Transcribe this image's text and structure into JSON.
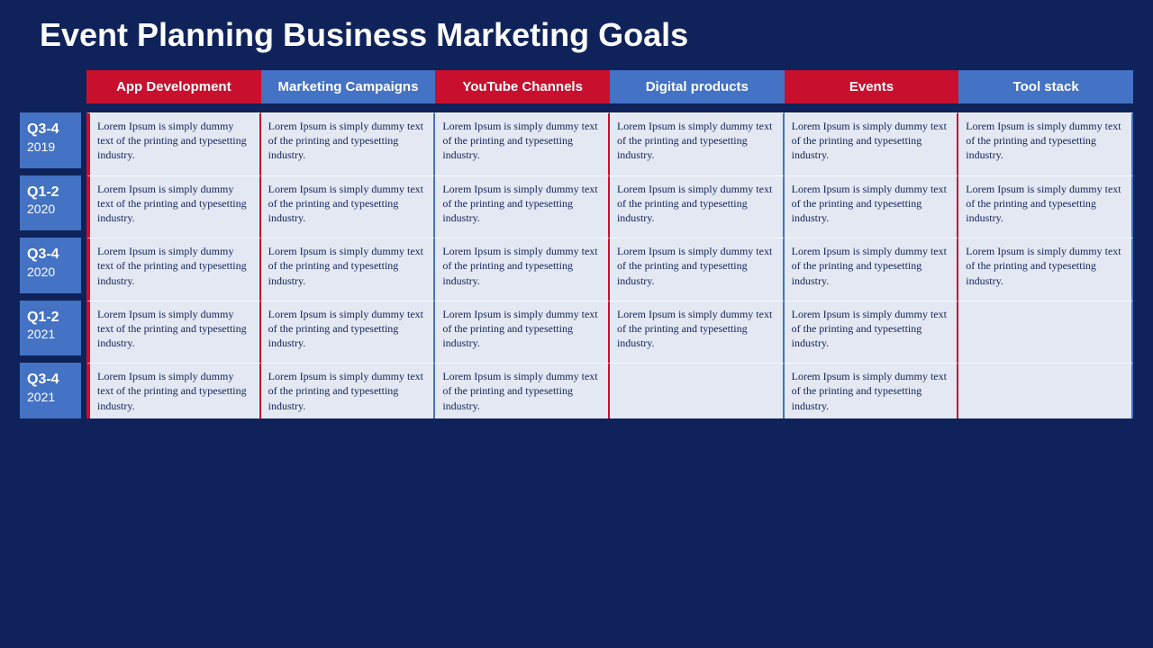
{
  "slide": {
    "title": "Event Planning Business Marketing Goals",
    "background_color": "#0f235a",
    "row_label_color": "#4472c4",
    "cell_background_color": "#e4e8f2",
    "cell_text_color": "#0f235a",
    "column_accent_red": "#c8102e",
    "column_accent_blue": "#4472c4",
    "columns": [
      {
        "label": "App Development",
        "accent": "red"
      },
      {
        "label": "Marketing Campaigns",
        "accent": "blue"
      },
      {
        "label": "YouTube Channels",
        "accent": "red"
      },
      {
        "label": "Digital products",
        "accent": "blue"
      },
      {
        "label": "Events",
        "accent": "red"
      },
      {
        "label": "Tool stack",
        "accent": "blue"
      }
    ],
    "rows": [
      {
        "quarter": "Q3-4",
        "year": "2019",
        "cells": [
          "Lorem Ipsum is simply dummy text of the printing and typesetting industry.",
          "Lorem Ipsum is simply dummy text of the printing and typesetting industry.",
          "Lorem Ipsum is simply dummy text of the printing and typesetting industry.",
          "Lorem Ipsum is simply dummy text of the printing and typesetting industry.",
          "Lorem Ipsum is simply dummy text of the printing and typesetting industry.",
          "Lorem Ipsum is simply dummy text of the printing and typesetting industry."
        ]
      },
      {
        "quarter": "Q1-2",
        "year": "2020",
        "cells": [
          "Lorem Ipsum is simply dummy text of the printing and typesetting industry.",
          "Lorem Ipsum is simply dummy text of the printing and typesetting industry.",
          "Lorem Ipsum is simply dummy text of the printing and typesetting industry.",
          "Lorem Ipsum is simply dummy text of the printing and typesetting industry.",
          "Lorem Ipsum is simply dummy text of the printing and typesetting industry.",
          "Lorem Ipsum is simply dummy text of the printing and typesetting industry."
        ]
      },
      {
        "quarter": "Q3-4",
        "year": "2020",
        "cells": [
          "Lorem Ipsum is simply dummy text of the printing and typesetting industry.",
          "Lorem Ipsum is simply dummy text of the printing and typesetting industry.",
          "Lorem Ipsum is simply dummy text of the printing and typesetting industry.",
          "Lorem Ipsum is simply dummy text of the printing and typesetting industry.",
          "Lorem Ipsum is simply dummy text of the printing and typesetting industry.",
          "Lorem Ipsum is simply dummy text of the printing and typesetting industry."
        ]
      },
      {
        "quarter": "Q1-2",
        "year": "2021",
        "cells": [
          "Lorem Ipsum is simply dummy text of the printing and typesetting industry.",
          "Lorem Ipsum is simply dummy text of the printing and typesetting industry.",
          "Lorem Ipsum is simply dummy text of the printing and typesetting industry.",
          "Lorem Ipsum is simply dummy text of the printing and typesetting industry.",
          "Lorem Ipsum is simply dummy text of the printing and typesetting industry.",
          ""
        ]
      },
      {
        "quarter": "Q3-4",
        "year": "2021",
        "cells": [
          "Lorem Ipsum is simply dummy text of the printing and typesetting industry.",
          "Lorem Ipsum is simply dummy text of the printing and typesetting industry.",
          "Lorem Ipsum is simply dummy text of the printing and typesetting industry.",
          "",
          "Lorem Ipsum is simply dummy text of the printing and typesetting industry.",
          ""
        ]
      }
    ]
  }
}
